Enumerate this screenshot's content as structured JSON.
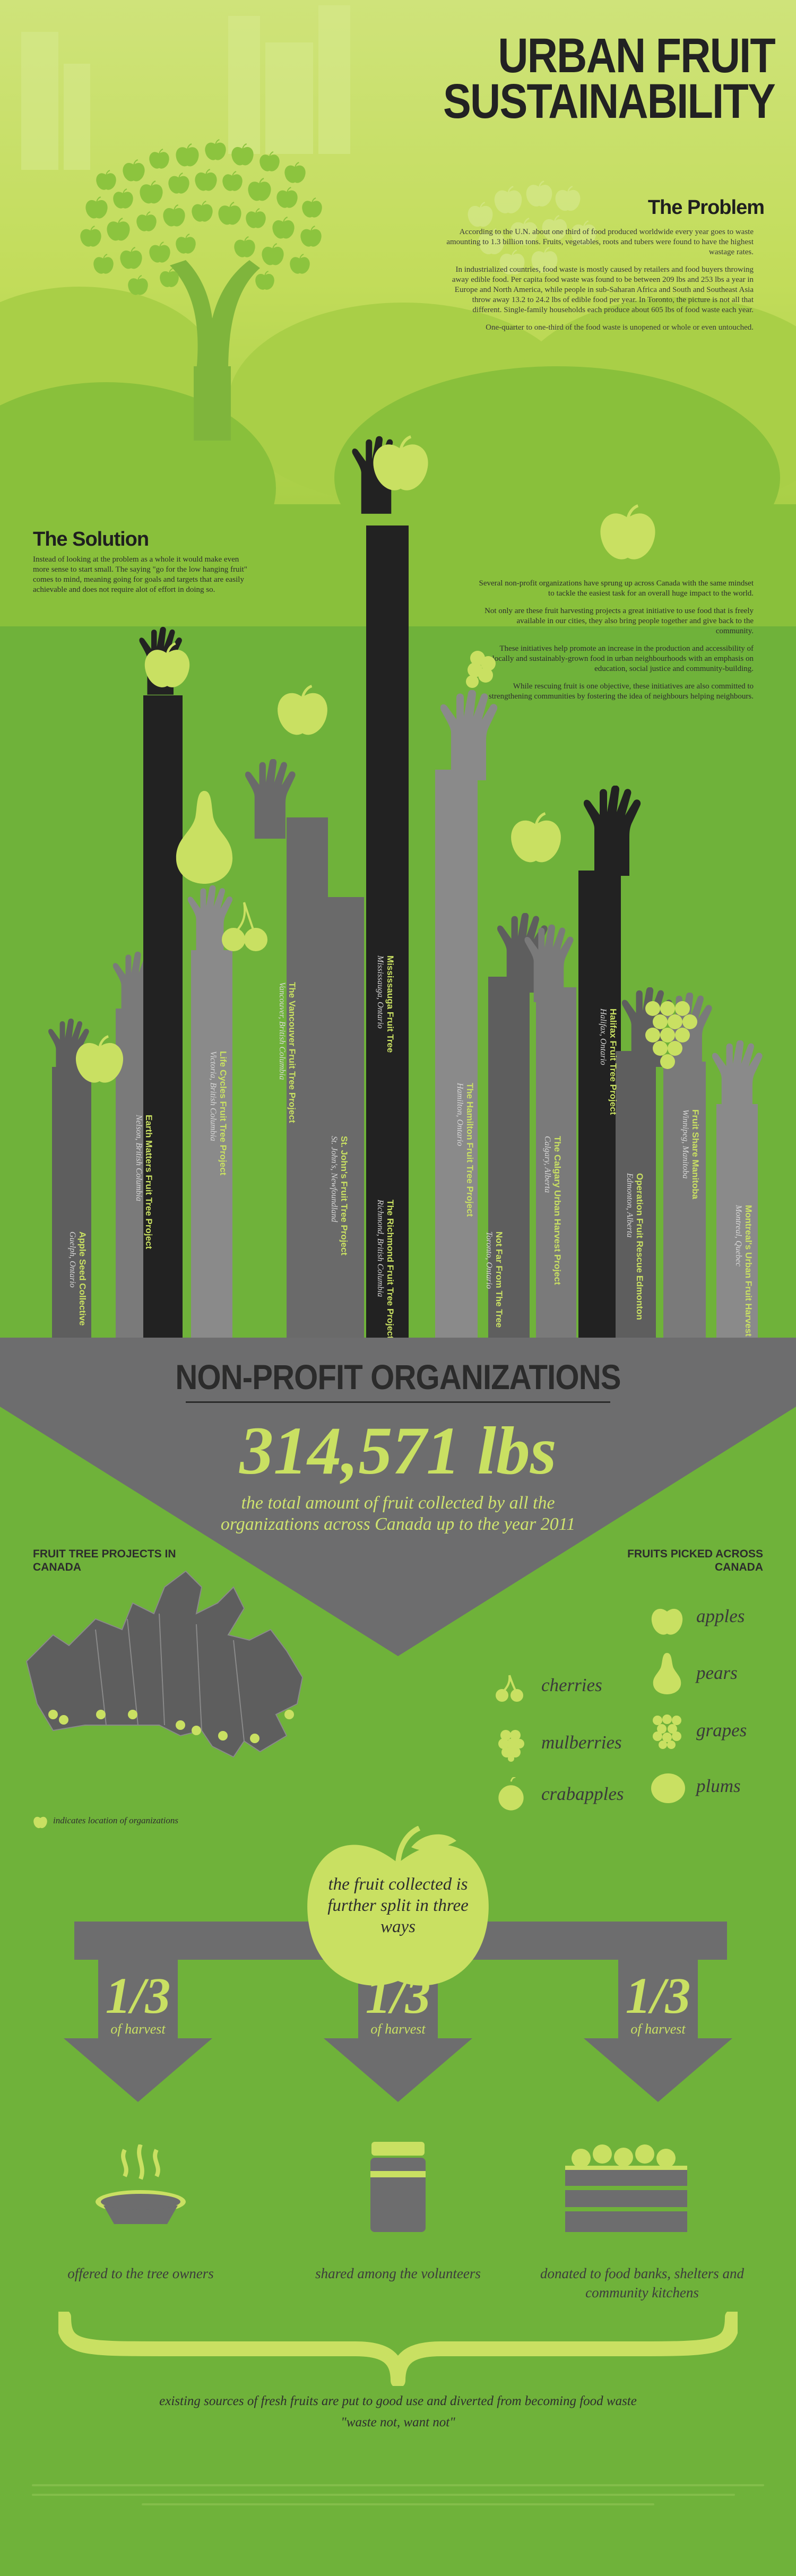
{
  "title_lines": [
    "URBAN FRUIT",
    "SUSTAINABILITY"
  ],
  "problem": {
    "heading": "The Problem",
    "paragraphs": [
      "According to the U.N. about one third of food produced worldwide every year goes to waste amounting to 1.3 billion tons. Fruits, vegetables, roots and tubers were found to have the highest wastage rates.",
      "In industrialized countries, food waste is mostly caused by retailers and food buyers throwing away edible food. Per capita food waste was found to be between 209 lbs and 253 lbs a year in Europe and North America, while people in sub-Saharan Africa and South and Southeast Asia throw away 13.2 to 24.2 lbs of edible food per year. In Toronto, the picture is not all that different. Single-family households each produce about 605 lbs of food waste each year.",
      "One-quarter to one-third of the food waste is unopened or whole or even untouched."
    ]
  },
  "solution": {
    "heading": "The Solution",
    "intro": "Instead of looking at the problem as a whole it would make even more sense to start small. The saying \"go for the low hanging fruit\" comes to mind, meaning going for goals and targets that are easily achievable and does not require alot of effort in doing so.",
    "paragraphs": [
      "Several non-profit organizations have sprung up across Canada with the same mindset to tackle the easiest task for an overall huge impact to the world.",
      "Not only are these fruit harvesting projects a great initiative to use food that is freely available in our cities, they also bring people together and give back to the community.",
      "These initiatives help promote an increase in the production and accessibility of locally and sustainably-grown food in urban neighbourhoods with an emphasis on education, social justice and community-building.",
      "While rescuing fruit is one objective, these initiatives are also committed to strengthening communities by fostering the idea of neighbours helping neighbours."
    ]
  },
  "organizations": [
    {
      "name": "Apple Seed Collective",
      "city": "Guelph, Ontario"
    },
    {
      "name": "Earth Matters Fruit Tree Project",
      "city": "Nelson, British Columbia"
    },
    {
      "name": "Life Cycles Fruit Tree Project",
      "city": "Victoria, British Columbia"
    },
    {
      "name": "The Vancouver Fruit Tree Project",
      "city": "Vancouver, British Columbia"
    },
    {
      "name": "St. John's Fruit Tree Project",
      "city": "St. John's, Newfoundland"
    },
    {
      "name": "Mississauga Fruit Tree",
      "city": "Mississauga, Ontario"
    },
    {
      "name": "The Richmond Fruit Tree Project",
      "city": "Richmond, British Columbia"
    },
    {
      "name": "The Hamilton Fruit Tree Project",
      "city": "Hamilton, Ontario"
    },
    {
      "name": "Not Far From The Tree",
      "city": "Toronto, Ontario"
    },
    {
      "name": "The Calgary Urban Harvest Project",
      "city": "Calgary, Alberta"
    },
    {
      "name": "Halifax Fruit Tree Project",
      "city": "Halifax, Ontario"
    },
    {
      "name": "Operation Fruit Rescue Edmonton",
      "city": "Edmonton, Alberta"
    },
    {
      "name": "Fruit Share Manitoba",
      "city": "Winnipeg, Manitoba"
    },
    {
      "name": "Montreal's Urban Fruit Harvest",
      "city": "Montreal, Quebec"
    }
  ],
  "npo": {
    "title": "NON-PROFIT ORGANIZATIONS",
    "big_number": "314,571 lbs",
    "caption": "the total amount of fruit collected by all the organizations across Canada up to the year 2011"
  },
  "map": {
    "heading": "FRUIT TREE PROJECTS IN CANADA",
    "legend": "indicates location of organizations"
  },
  "fruits": {
    "heading": "FRUITS PICKED ACROSS CANADA",
    "left_column": [
      "cherries",
      "mulberries",
      "crabapples"
    ],
    "right_column": [
      "apples",
      "pears",
      "grapes",
      "plums"
    ]
  },
  "split": {
    "apple_text": "the fruit collected is further split in three ways",
    "fraction": "1/3",
    "fraction_caption": "of harvest",
    "captions": [
      "offered to the tree owners",
      "shared among the volunteers",
      "donated to food banks, shelters and community kitchens"
    ]
  },
  "closing": {
    "line1": "existing sources of fresh fruits are put to good use and diverted from becoming food waste",
    "line2": "\"waste not, want not\""
  },
  "colors": {
    "lime": "#c9e062",
    "green": "#6fb23a",
    "gray": "#6d6d6e",
    "dark": "#2b2b2b"
  }
}
